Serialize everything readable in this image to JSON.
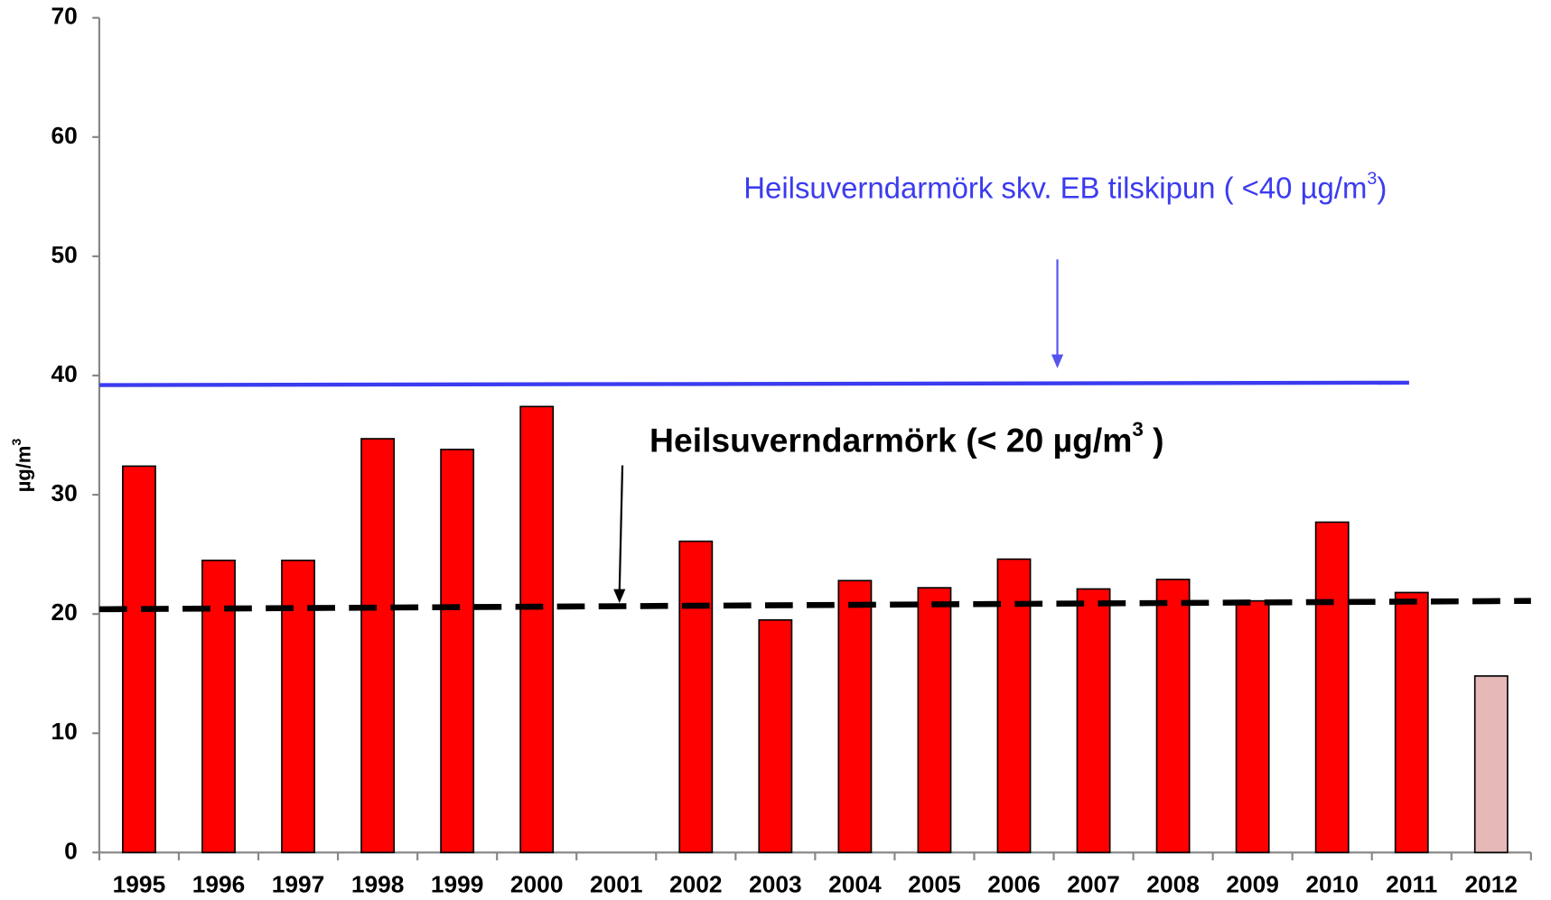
{
  "chart_data": {
    "type": "bar",
    "y_label": {
      "text": "µg/m",
      "sup": "3"
    },
    "categories": [
      "1995",
      "1996",
      "1997",
      "1998",
      "1999",
      "2000",
      "2001",
      "2002",
      "2003",
      "2004",
      "2005",
      "2006",
      "2007",
      "2008",
      "2009",
      "2010",
      "2011",
      "2012"
    ],
    "values": [
      32.4,
      24.5,
      24.5,
      34.7,
      33.8,
      37.4,
      null,
      26.1,
      19.5,
      22.8,
      22.2,
      24.6,
      22.1,
      22.9,
      21.1,
      27.7,
      21.8,
      14.8
    ],
    "colors": [
      "#ff0000",
      "#ff0000",
      "#ff0000",
      "#ff0000",
      "#ff0000",
      "#ff0000",
      "#ff0000",
      "#ff0000",
      "#ff0000",
      "#ff0000",
      "#ff0000",
      "#ff0000",
      "#ff0000",
      "#ff0000",
      "#ff0000",
      "#ff0000",
      "#ff0000",
      "#e6b9b8"
    ],
    "ylim": [
      0,
      70
    ],
    "yticks": [
      0,
      10,
      20,
      30,
      40,
      50,
      60,
      70
    ],
    "reference_lines": [
      {
        "values": [
          39.2,
          39.4
        ],
        "color": "#3b3bf0",
        "dashed": false,
        "label": {
          "text": "Heilsuverndarmörk skv. EB tilskipun ( <40 µg/m",
          "sup": "3",
          "end": ")"
        }
      },
      {
        "values": [
          20.4,
          21.1
        ],
        "color": "#000000",
        "dashed": true,
        "label": {
          "text": "Heilsuverndarmörk (< 20 µg/m",
          "sup": "3",
          "end": " )"
        }
      }
    ]
  }
}
